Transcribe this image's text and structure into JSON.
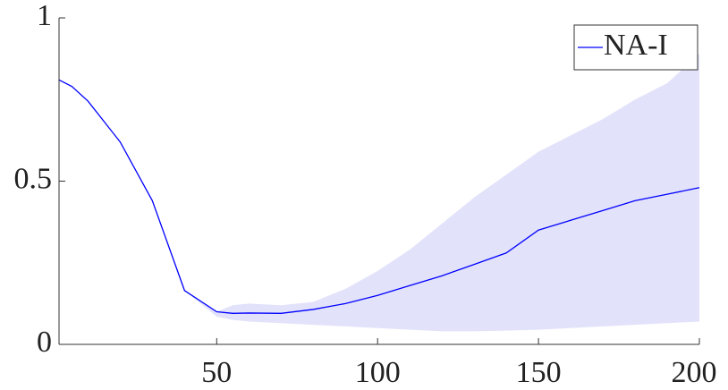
{
  "chart_data": {
    "type": "line",
    "x": [
      1,
      5,
      10,
      20,
      30,
      40,
      50,
      55,
      60,
      70,
      80,
      90,
      100,
      110,
      120,
      130,
      140,
      150,
      160,
      170,
      180,
      190,
      200
    ],
    "series": [
      {
        "name": "NA-I",
        "color": "#0000ff",
        "band_color": "#e2e2fb",
        "values": [
          0.81,
          0.79,
          0.745,
          0.62,
          0.44,
          0.165,
          0.1,
          0.095,
          0.096,
          0.095,
          0.107,
          0.125,
          0.15,
          0.18,
          0.21,
          0.245,
          0.28,
          0.35,
          0.38,
          0.41,
          0.44,
          0.46,
          0.48
        ],
        "upper": [
          0.81,
          0.79,
          0.745,
          0.62,
          0.44,
          0.165,
          0.1,
          0.12,
          0.125,
          0.12,
          0.13,
          0.17,
          0.225,
          0.29,
          0.37,
          0.45,
          0.52,
          0.59,
          0.64,
          0.69,
          0.75,
          0.8,
          0.89
        ],
        "lower": [
          0.81,
          0.79,
          0.745,
          0.62,
          0.44,
          0.165,
          0.085,
          0.075,
          0.07,
          0.065,
          0.06,
          0.055,
          0.05,
          0.045,
          0.04,
          0.04,
          0.042,
          0.045,
          0.05,
          0.055,
          0.06,
          0.065,
          0.07
        ]
      }
    ],
    "xlim": [
      1,
      200
    ],
    "xticks": [
      50,
      100,
      150,
      200
    ],
    "ylim": [
      0,
      1
    ],
    "yticks": [
      0,
      0.5,
      1
    ],
    "legend": "top-right"
  }
}
